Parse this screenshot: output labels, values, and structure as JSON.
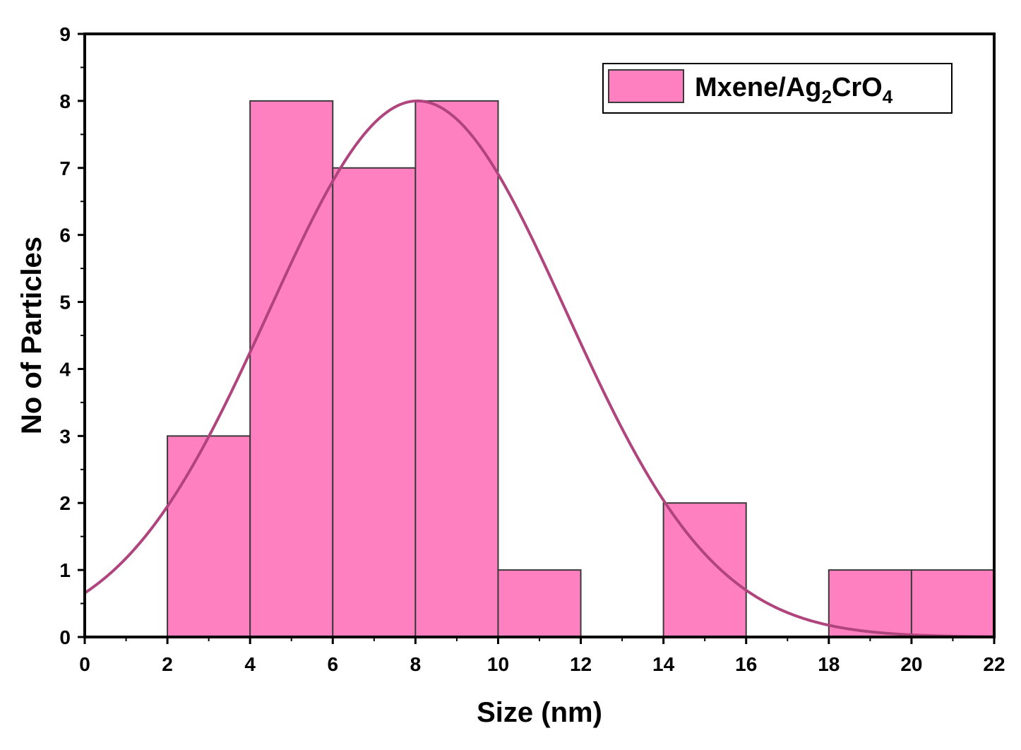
{
  "chart_data": {
    "type": "bar",
    "subtype": "histogram",
    "bins": [
      {
        "start": 2,
        "end": 4,
        "value": 3
      },
      {
        "start": 4,
        "end": 6,
        "value": 8
      },
      {
        "start": 6,
        "end": 8,
        "value": 7
      },
      {
        "start": 8,
        "end": 10,
        "value": 8
      },
      {
        "start": 10,
        "end": 12,
        "value": 1
      },
      {
        "start": 14,
        "end": 16,
        "value": 2
      },
      {
        "start": 18,
        "end": 20,
        "value": 1
      },
      {
        "start": 20,
        "end": 22,
        "value": 1
      }
    ],
    "fit": {
      "type": "gaussian",
      "peak_x": 8.05,
      "peak_y": 8.0,
      "sigma": 3.6
    },
    "xlabel": "Size (nm)",
    "ylabel": "No of Particles",
    "xlim": [
      0,
      22
    ],
    "ylim": [
      0,
      9
    ],
    "xticks": [
      "0",
      "2",
      "4",
      "6",
      "8",
      "10",
      "12",
      "14",
      "16",
      "18",
      "20",
      "22"
    ],
    "yticks": [
      "0",
      "1",
      "2",
      "3",
      "4",
      "5",
      "6",
      "7",
      "8",
      "9"
    ],
    "legend": {
      "placement": "top-right",
      "entries": [
        {
          "base": "Mxene/Ag",
          "sub1": "2",
          "mid": "CrO",
          "sub2": "4"
        }
      ]
    },
    "grid": false,
    "colors": {
      "bar_fill": "#ff80c0",
      "bar_stroke": "#3a3a3a",
      "fit_line": "#b0457e"
    }
  }
}
